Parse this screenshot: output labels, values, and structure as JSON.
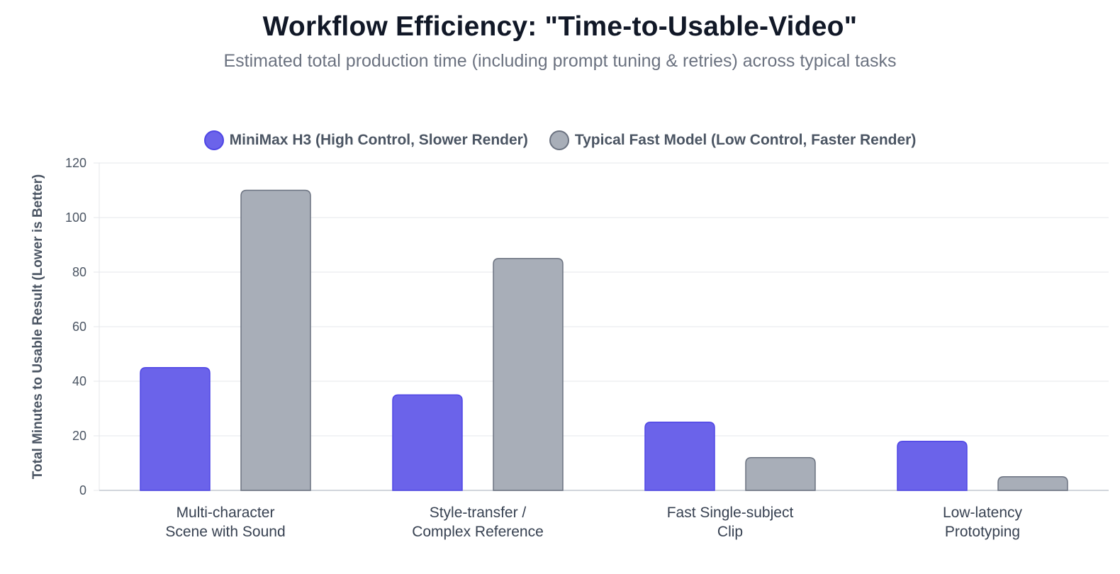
{
  "chart_data": {
    "type": "bar",
    "title": "Workflow Efficiency: \"Time-to-Usable-Video\"",
    "subtitle": "Estimated total production time (including prompt tuning & retries) across typical tasks",
    "categories": [
      [
        "Multi-character",
        "Scene with Sound"
      ],
      [
        "Style-transfer /",
        "Complex Reference"
      ],
      [
        "Fast Single-subject",
        "Clip"
      ],
      [
        "Low-latency",
        "Prototyping"
      ]
    ],
    "series": [
      {
        "name": "MiniMax H3 (High Control, Slower Render)",
        "values": [
          45,
          35,
          25,
          18
        ],
        "color": "#6b63ea",
        "border": "#4f46e5"
      },
      {
        "name": "Typical Fast Model (Low Control, Faster Render)",
        "values": [
          110,
          85,
          12,
          5
        ],
        "color": "#a8aeb8",
        "border": "#6b7280"
      }
    ],
    "xlabel": "",
    "ylabel": "Total Minutes to Usable Result (Lower is Better)",
    "ylim": [
      0,
      120
    ],
    "yticks": [
      0,
      20,
      40,
      60,
      80,
      100,
      120
    ],
    "grid": true,
    "legend": "top-center",
    "colors": {
      "grid": "#e5e7eb",
      "axis": "#d1d5db"
    }
  }
}
